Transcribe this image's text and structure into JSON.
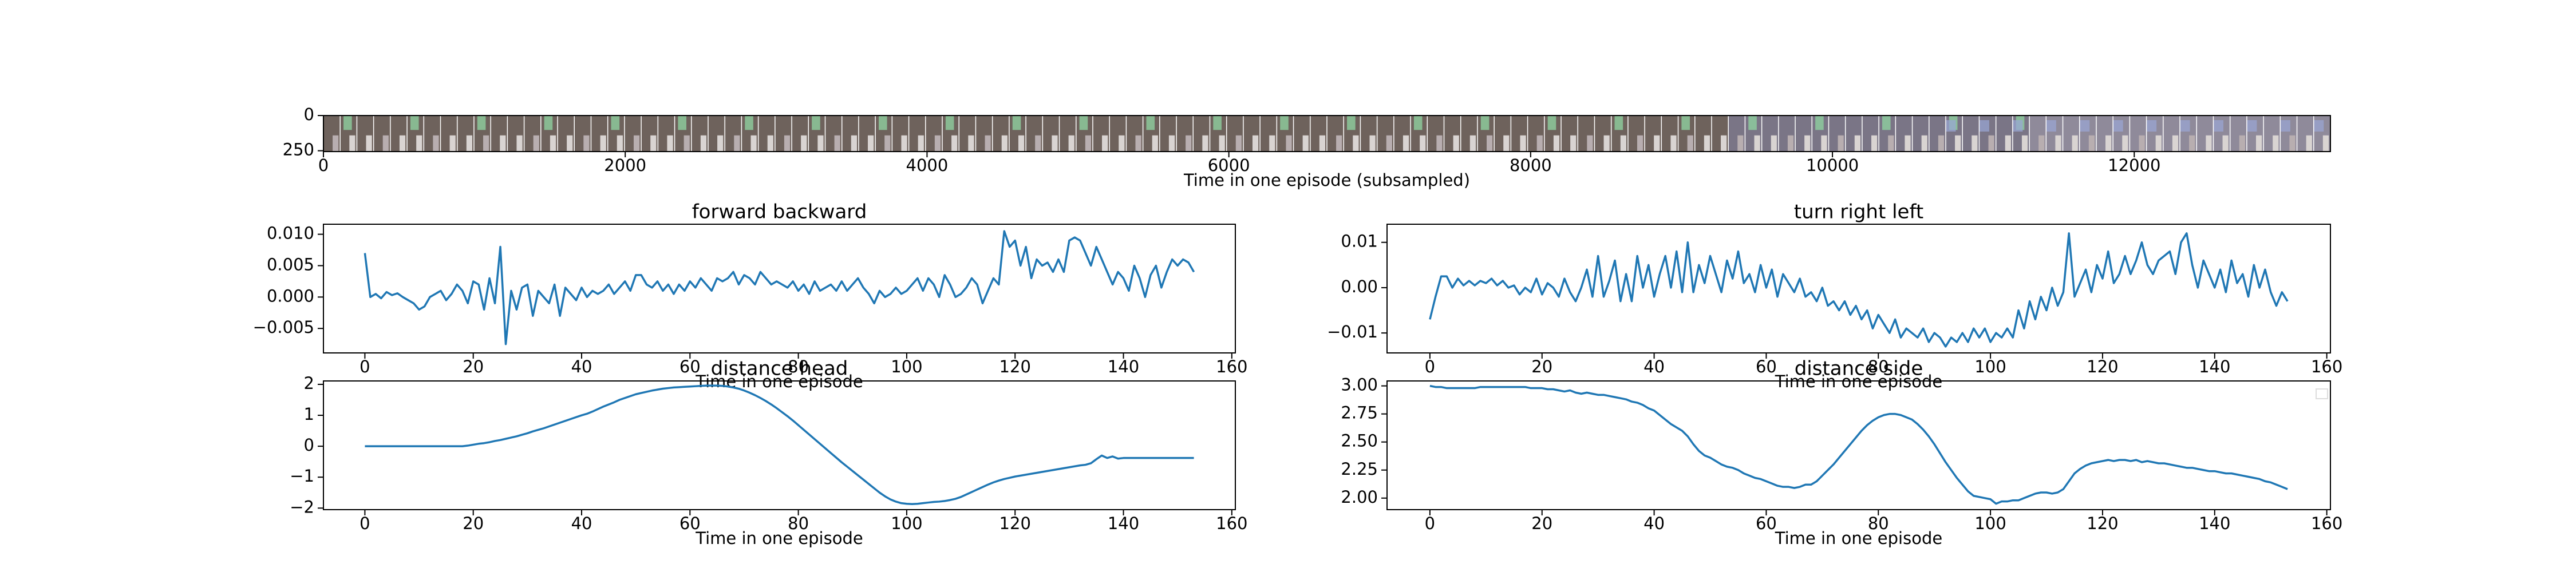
{
  "chart_data": [
    {
      "type": "image",
      "xlabel": "Time in one episode (subsampled)",
      "xlim": [
        0,
        13300
      ],
      "ylim": [
        256,
        0
      ],
      "xticks": [
        0,
        2000,
        4000,
        6000,
        8000,
        10000,
        12000
      ],
      "yticks": [
        0,
        250
      ]
    },
    {
      "type": "line",
      "title": "forward backward",
      "xlabel": "Time in one episode",
      "color": "#1f77b4",
      "xlim": [
        -7.65,
        160.65
      ],
      "ylim": [
        -0.0089,
        0.0116
      ],
      "xticks": [
        0,
        20,
        40,
        60,
        80,
        100,
        120,
        140,
        160
      ],
      "yticks": [
        {
          "value": -0.005,
          "label": "−0.005"
        },
        {
          "value": 0,
          "label": "0.000"
        },
        {
          "value": 0.005,
          "label": "0.005"
        },
        {
          "value": 0.01,
          "label": "0.010"
        }
      ],
      "x": [
        0,
        1,
        2,
        3,
        4,
        5,
        6,
        7,
        8,
        9,
        10,
        11,
        12,
        13,
        14,
        15,
        16,
        17,
        18,
        19,
        20,
        21,
        22,
        23,
        24,
        25,
        26,
        27,
        28,
        29,
        30,
        31,
        32,
        33,
        34,
        35,
        36,
        37,
        38,
        39,
        40,
        41,
        42,
        43,
        44,
        45,
        46,
        47,
        48,
        49,
        50,
        51,
        52,
        53,
        54,
        55,
        56,
        57,
        58,
        59,
        60,
        61,
        62,
        63,
        64,
        65,
        66,
        67,
        68,
        69,
        70,
        71,
        72,
        73,
        74,
        75,
        76,
        77,
        78,
        79,
        80,
        81,
        82,
        83,
        84,
        85,
        86,
        87,
        88,
        89,
        90,
        91,
        92,
        93,
        94,
        95,
        96,
        97,
        98,
        99,
        100,
        101,
        102,
        103,
        104,
        105,
        106,
        107,
        108,
        109,
        110,
        111,
        112,
        113,
        114,
        115,
        116,
        117,
        118,
        119,
        120,
        121,
        122,
        123,
        124,
        125,
        126,
        127,
        128,
        129,
        130,
        131,
        132,
        133,
        134,
        135,
        136,
        137,
        138,
        139,
        140,
        141,
        142,
        143,
        144,
        145,
        146,
        147,
        148,
        149,
        150,
        151,
        152,
        153
      ],
      "values": [
        0.007,
        0,
        0.0005,
        -0.0002,
        0.0008,
        0.0003,
        0.0006,
        0,
        -0.0005,
        -0.001,
        -0.002,
        -0.0015,
        0,
        0.0005,
        0.001,
        -0.0005,
        0.0005,
        0.002,
        0.001,
        -0.001,
        0.0025,
        0.002,
        -0.002,
        0.003,
        -0.001,
        0.008,
        -0.0075,
        0.001,
        -0.002,
        0.0015,
        0.002,
        -0.003,
        0.001,
        0,
        -0.001,
        0.002,
        -0.003,
        0.0015,
        0.0005,
        -0.0005,
        0.0015,
        0,
        0.001,
        0.0005,
        0.001,
        0.002,
        0.0005,
        0.0015,
        0.0025,
        0.001,
        0.0035,
        0.0035,
        0.002,
        0.0015,
        0.0025,
        0.001,
        0.002,
        0.0005,
        0.002,
        0.001,
        0.0025,
        0.0015,
        0.003,
        0.002,
        0.001,
        0.003,
        0.0025,
        0.003,
        0.004,
        0.002,
        0.0035,
        0.003,
        0.002,
        0.004,
        0.003,
        0.002,
        0.0025,
        0.002,
        0.0015,
        0.0025,
        0.001,
        0.002,
        0.0005,
        0.0025,
        0.001,
        0.0015,
        0.002,
        0.001,
        0.0025,
        0.001,
        0.002,
        0.003,
        0.0015,
        0.0005,
        -0.001,
        0.001,
        0,
        0.0005,
        0.0015,
        0.0005,
        0.001,
        0.002,
        0.003,
        0.001,
        0.003,
        0.002,
        0,
        0.0035,
        0.002,
        0,
        0.0005,
        0.0015,
        0.003,
        0.002,
        -0.001,
        0.001,
        0.003,
        0.002,
        0.0105,
        0.008,
        0.009,
        0.005,
        0.008,
        0.003,
        0.006,
        0.005,
        0.0055,
        0.004,
        0.006,
        0.004,
        0.009,
        0.0095,
        0.009,
        0.007,
        0.005,
        0.008,
        0.006,
        0.004,
        0.002,
        0.004,
        0.003,
        0.001,
        0.005,
        0.003,
        0,
        0.0035,
        0.005,
        0.0015,
        0.004,
        0.006,
        0.005,
        0.006,
        0.0055,
        0.004
      ]
    },
    {
      "type": "line",
      "title": "turn right left",
      "xlabel": "Time in one episode",
      "color": "#1f77b4",
      "xlim": [
        -7.65,
        160.65
      ],
      "ylim": [
        -0.0144,
        0.014
      ],
      "xticks": [
        0,
        20,
        40,
        60,
        80,
        100,
        120,
        140,
        160
      ],
      "yticks": [
        {
          "value": -0.01,
          "label": "−0.01"
        },
        {
          "value": 0,
          "label": "0.00"
        },
        {
          "value": 0.01,
          "label": "0.01"
        }
      ],
      "x": [
        0,
        1,
        2,
        3,
        4,
        5,
        6,
        7,
        8,
        9,
        10,
        11,
        12,
        13,
        14,
        15,
        16,
        17,
        18,
        19,
        20,
        21,
        22,
        23,
        24,
        25,
        26,
        27,
        28,
        29,
        30,
        31,
        32,
        33,
        34,
        35,
        36,
        37,
        38,
        39,
        40,
        41,
        42,
        43,
        44,
        45,
        46,
        47,
        48,
        49,
        50,
        51,
        52,
        53,
        54,
        55,
        56,
        57,
        58,
        59,
        60,
        61,
        62,
        63,
        64,
        65,
        66,
        67,
        68,
        69,
        70,
        71,
        72,
        73,
        74,
        75,
        76,
        77,
        78,
        79,
        80,
        81,
        82,
        83,
        84,
        85,
        86,
        87,
        88,
        89,
        90,
        91,
        92,
        93,
        94,
        95,
        96,
        97,
        98,
        99,
        100,
        101,
        102,
        103,
        104,
        105,
        106,
        107,
        108,
        109,
        110,
        111,
        112,
        113,
        114,
        115,
        116,
        117,
        118,
        119,
        120,
        121,
        122,
        123,
        124,
        125,
        126,
        127,
        128,
        129,
        130,
        131,
        132,
        133,
        134,
        135,
        136,
        137,
        138,
        139,
        140,
        141,
        142,
        143,
        144,
        145,
        146,
        147,
        148,
        149,
        150,
        151,
        152,
        153
      ],
      "values": [
        -0.007,
        -0.002,
        0.0025,
        0.0025,
        0,
        0.002,
        0.0005,
        0.0015,
        0.0005,
        0.0015,
        0.001,
        0.002,
        0.0005,
        0.0015,
        0,
        0.0005,
        -0.0015,
        0,
        -0.001,
        0.002,
        -0.0015,
        0.001,
        0,
        -0.002,
        0.002,
        -0.001,
        -0.003,
        0,
        0.004,
        -0.002,
        0.007,
        -0.002,
        0.0015,
        0.006,
        -0.003,
        0.003,
        -0.003,
        0.007,
        0,
        0.005,
        -0.002,
        0.003,
        0.007,
        0,
        0.008,
        -0.001,
        0.01,
        -0.001,
        0.005,
        0.001,
        0.007,
        0.003,
        -0.001,
        0.006,
        0.002,
        0.008,
        0.001,
        0.003,
        -0.001,
        0.005,
        0,
        0.004,
        -0.002,
        0.003,
        0.001,
        -0.001,
        0.002,
        -0.002,
        -0.001,
        -0.003,
        0,
        -0.004,
        -0.003,
        -0.005,
        -0.003,
        -0.006,
        -0.004,
        -0.007,
        -0.005,
        -0.009,
        -0.006,
        -0.008,
        -0.01,
        -0.007,
        -0.011,
        -0.009,
        -0.01,
        -0.011,
        -0.009,
        -0.012,
        -0.01,
        -0.011,
        -0.013,
        -0.011,
        -0.012,
        -0.01,
        -0.012,
        -0.009,
        -0.011,
        -0.009,
        -0.012,
        -0.01,
        -0.011,
        -0.009,
        -0.011,
        -0.005,
        -0.009,
        -0.003,
        -0.007,
        -0.002,
        -0.005,
        0,
        -0.004,
        -0.001,
        0.012,
        -0.002,
        0.001,
        0.004,
        -0.001,
        0.005,
        0.002,
        0.008,
        0.001,
        0.003,
        0.007,
        0.003,
        0.006,
        0.01,
        0.005,
        0.003,
        0.006,
        0.007,
        0.008,
        0.003,
        0.01,
        0.012,
        0.005,
        0,
        0.006,
        0.003,
        0,
        0.004,
        -0.001,
        0.006,
        0.001,
        0.003,
        -0.002,
        0.005,
        0,
        0.004,
        -0.001,
        -0.004,
        -0.001,
        -0.003
      ]
    },
    {
      "type": "line",
      "title": "distance head",
      "xlabel": "Time in one episode",
      "color": "#1f77b4",
      "xlim": [
        -7.65,
        160.65
      ],
      "ylim": [
        -2.05,
        2.11
      ],
      "xticks": [
        0,
        20,
        40,
        60,
        80,
        100,
        120,
        140,
        160
      ],
      "yticks": [
        {
          "value": -2,
          "label": "−2"
        },
        {
          "value": -1,
          "label": "−1"
        },
        0,
        1,
        2
      ],
      "x": [
        0,
        1,
        2,
        3,
        4,
        5,
        6,
        7,
        8,
        9,
        10,
        11,
        12,
        13,
        14,
        15,
        16,
        17,
        18,
        19,
        20,
        21,
        22,
        23,
        24,
        25,
        26,
        27,
        28,
        29,
        30,
        31,
        32,
        33,
        34,
        35,
        36,
        37,
        38,
        39,
        40,
        41,
        42,
        43,
        44,
        45,
        46,
        47,
        48,
        49,
        50,
        51,
        52,
        53,
        54,
        55,
        56,
        57,
        58,
        59,
        60,
        61,
        62,
        63,
        64,
        65,
        66,
        67,
        68,
        69,
        70,
        71,
        72,
        73,
        74,
        75,
        76,
        77,
        78,
        79,
        80,
        81,
        82,
        83,
        84,
        85,
        86,
        87,
        88,
        89,
        90,
        91,
        92,
        93,
        94,
        95,
        96,
        97,
        98,
        99,
        100,
        101,
        102,
        103,
        104,
        105,
        106,
        107,
        108,
        109,
        110,
        111,
        112,
        113,
        114,
        115,
        116,
        117,
        118,
        119,
        120,
        121,
        122,
        123,
        124,
        125,
        126,
        127,
        128,
        129,
        130,
        131,
        132,
        133,
        134,
        135,
        136,
        137,
        138,
        139,
        140,
        141,
        142,
        143,
        144,
        145,
        146,
        147,
        148,
        149,
        150,
        151,
        152,
        153
      ],
      "values": [
        0,
        0,
        0,
        0,
        0,
        0,
        0,
        0,
        0,
        0,
        0,
        0,
        0,
        0,
        0,
        0,
        0,
        0,
        0,
        0.02,
        0.05,
        0.08,
        0.1,
        0.13,
        0.17,
        0.2,
        0.24,
        0.28,
        0.32,
        0.37,
        0.42,
        0.48,
        0.53,
        0.58,
        0.64,
        0.7,
        0.76,
        0.82,
        0.88,
        0.94,
        1.0,
        1.05,
        1.12,
        1.2,
        1.28,
        1.35,
        1.42,
        1.5,
        1.56,
        1.62,
        1.68,
        1.72,
        1.76,
        1.8,
        1.83,
        1.86,
        1.88,
        1.9,
        1.91,
        1.92,
        1.93,
        1.94,
        1.95,
        1.96,
        1.96,
        1.96,
        1.95,
        1.93,
        1.9,
        1.86,
        1.8,
        1.73,
        1.65,
        1.56,
        1.46,
        1.35,
        1.23,
        1.1,
        0.97,
        0.83,
        0.68,
        0.53,
        0.38,
        0.23,
        0.08,
        -0.07,
        -0.22,
        -0.37,
        -0.52,
        -0.66,
        -0.8,
        -0.94,
        -1.08,
        -1.22,
        -1.36,
        -1.5,
        -1.62,
        -1.72,
        -1.79,
        -1.84,
        -1.86,
        -1.87,
        -1.86,
        -1.84,
        -1.82,
        -1.8,
        -1.79,
        -1.77,
        -1.74,
        -1.7,
        -1.64,
        -1.56,
        -1.48,
        -1.4,
        -1.32,
        -1.24,
        -1.17,
        -1.11,
        -1.06,
        -1.02,
        -0.98,
        -0.95,
        -0.92,
        -0.89,
        -0.86,
        -0.83,
        -0.8,
        -0.77,
        -0.74,
        -0.71,
        -0.68,
        -0.65,
        -0.62,
        -0.6,
        -0.55,
        -0.42,
        -0.3,
        -0.38,
        -0.33,
        -0.4,
        -0.38,
        -0.38,
        -0.38,
        -0.38,
        -0.38,
        -0.38,
        -0.38,
        -0.38,
        -0.38,
        -0.38,
        -0.38,
        -0.38,
        -0.38,
        -0.38
      ]
    },
    {
      "type": "line",
      "title": "distance side",
      "xlabel": "Time in one episode",
      "color": "#1f77b4",
      "xlim": [
        -7.65,
        160.65
      ],
      "ylim": [
        1.897,
        3.044
      ],
      "xticks": [
        0,
        20,
        40,
        60,
        80,
        100,
        120,
        140,
        160
      ],
      "yticks": [
        {
          "value": 2,
          "label": "2.00"
        },
        {
          "value": 2.25,
          "label": "2.25"
        },
        {
          "value": 2.5,
          "label": "2.50"
        },
        {
          "value": 2.75,
          "label": "2.75"
        },
        {
          "value": 3,
          "label": "3.00"
        }
      ],
      "x": [
        0,
        1,
        2,
        3,
        4,
        5,
        6,
        7,
        8,
        9,
        10,
        11,
        12,
        13,
        14,
        15,
        16,
        17,
        18,
        19,
        20,
        21,
        22,
        23,
        24,
        25,
        26,
        27,
        28,
        29,
        30,
        31,
        32,
        33,
        34,
        35,
        36,
        37,
        38,
        39,
        40,
        41,
        42,
        43,
        44,
        45,
        46,
        47,
        48,
        49,
        50,
        51,
        52,
        53,
        54,
        55,
        56,
        57,
        58,
        59,
        60,
        61,
        62,
        63,
        64,
        65,
        66,
        67,
        68,
        69,
        70,
        71,
        72,
        73,
        74,
        75,
        76,
        77,
        78,
        79,
        80,
        81,
        82,
        83,
        84,
        85,
        86,
        87,
        88,
        89,
        90,
        91,
        92,
        93,
        94,
        95,
        96,
        97,
        98,
        99,
        100,
        101,
        102,
        103,
        104,
        105,
        106,
        107,
        108,
        109,
        110,
        111,
        112,
        113,
        114,
        115,
        116,
        117,
        118,
        119,
        120,
        121,
        122,
        123,
        124,
        125,
        126,
        127,
        128,
        129,
        130,
        131,
        132,
        133,
        134,
        135,
        136,
        137,
        138,
        139,
        140,
        141,
        142,
        143,
        144,
        145,
        146,
        147,
        148,
        149,
        150,
        151,
        152,
        153
      ],
      "values": [
        3.0,
        2.99,
        2.99,
        2.98,
        2.98,
        2.98,
        2.98,
        2.98,
        2.98,
        2.99,
        2.99,
        2.99,
        2.99,
        2.99,
        2.99,
        2.99,
        2.99,
        2.99,
        2.98,
        2.98,
        2.98,
        2.97,
        2.97,
        2.96,
        2.95,
        2.96,
        2.94,
        2.93,
        2.94,
        2.93,
        2.92,
        2.92,
        2.91,
        2.9,
        2.89,
        2.88,
        2.86,
        2.85,
        2.83,
        2.8,
        2.78,
        2.74,
        2.7,
        2.66,
        2.63,
        2.6,
        2.55,
        2.48,
        2.42,
        2.38,
        2.36,
        2.33,
        2.3,
        2.28,
        2.27,
        2.25,
        2.22,
        2.2,
        2.18,
        2.17,
        2.15,
        2.13,
        2.11,
        2.1,
        2.1,
        2.09,
        2.1,
        2.12,
        2.12,
        2.15,
        2.2,
        2.25,
        2.3,
        2.36,
        2.42,
        2.48,
        2.54,
        2.6,
        2.65,
        2.69,
        2.72,
        2.74,
        2.75,
        2.75,
        2.74,
        2.72,
        2.7,
        2.66,
        2.61,
        2.55,
        2.48,
        2.4,
        2.32,
        2.25,
        2.18,
        2.12,
        2.06,
        2.02,
        2.01,
        2.0,
        1.99,
        1.95,
        1.97,
        1.97,
        1.98,
        1.98,
        2.0,
        2.02,
        2.04,
        2.05,
        2.05,
        2.04,
        2.05,
        2.08,
        2.15,
        2.22,
        2.26,
        2.29,
        2.31,
        2.32,
        2.33,
        2.34,
        2.33,
        2.34,
        2.34,
        2.33,
        2.34,
        2.32,
        2.33,
        2.32,
        2.31,
        2.31,
        2.3,
        2.29,
        2.28,
        2.27,
        2.27,
        2.26,
        2.25,
        2.24,
        2.24,
        2.23,
        2.22,
        2.22,
        2.21,
        2.2,
        2.19,
        2.18,
        2.17,
        2.15,
        2.14,
        2.12,
        2.1,
        2.08
      ]
    }
  ]
}
